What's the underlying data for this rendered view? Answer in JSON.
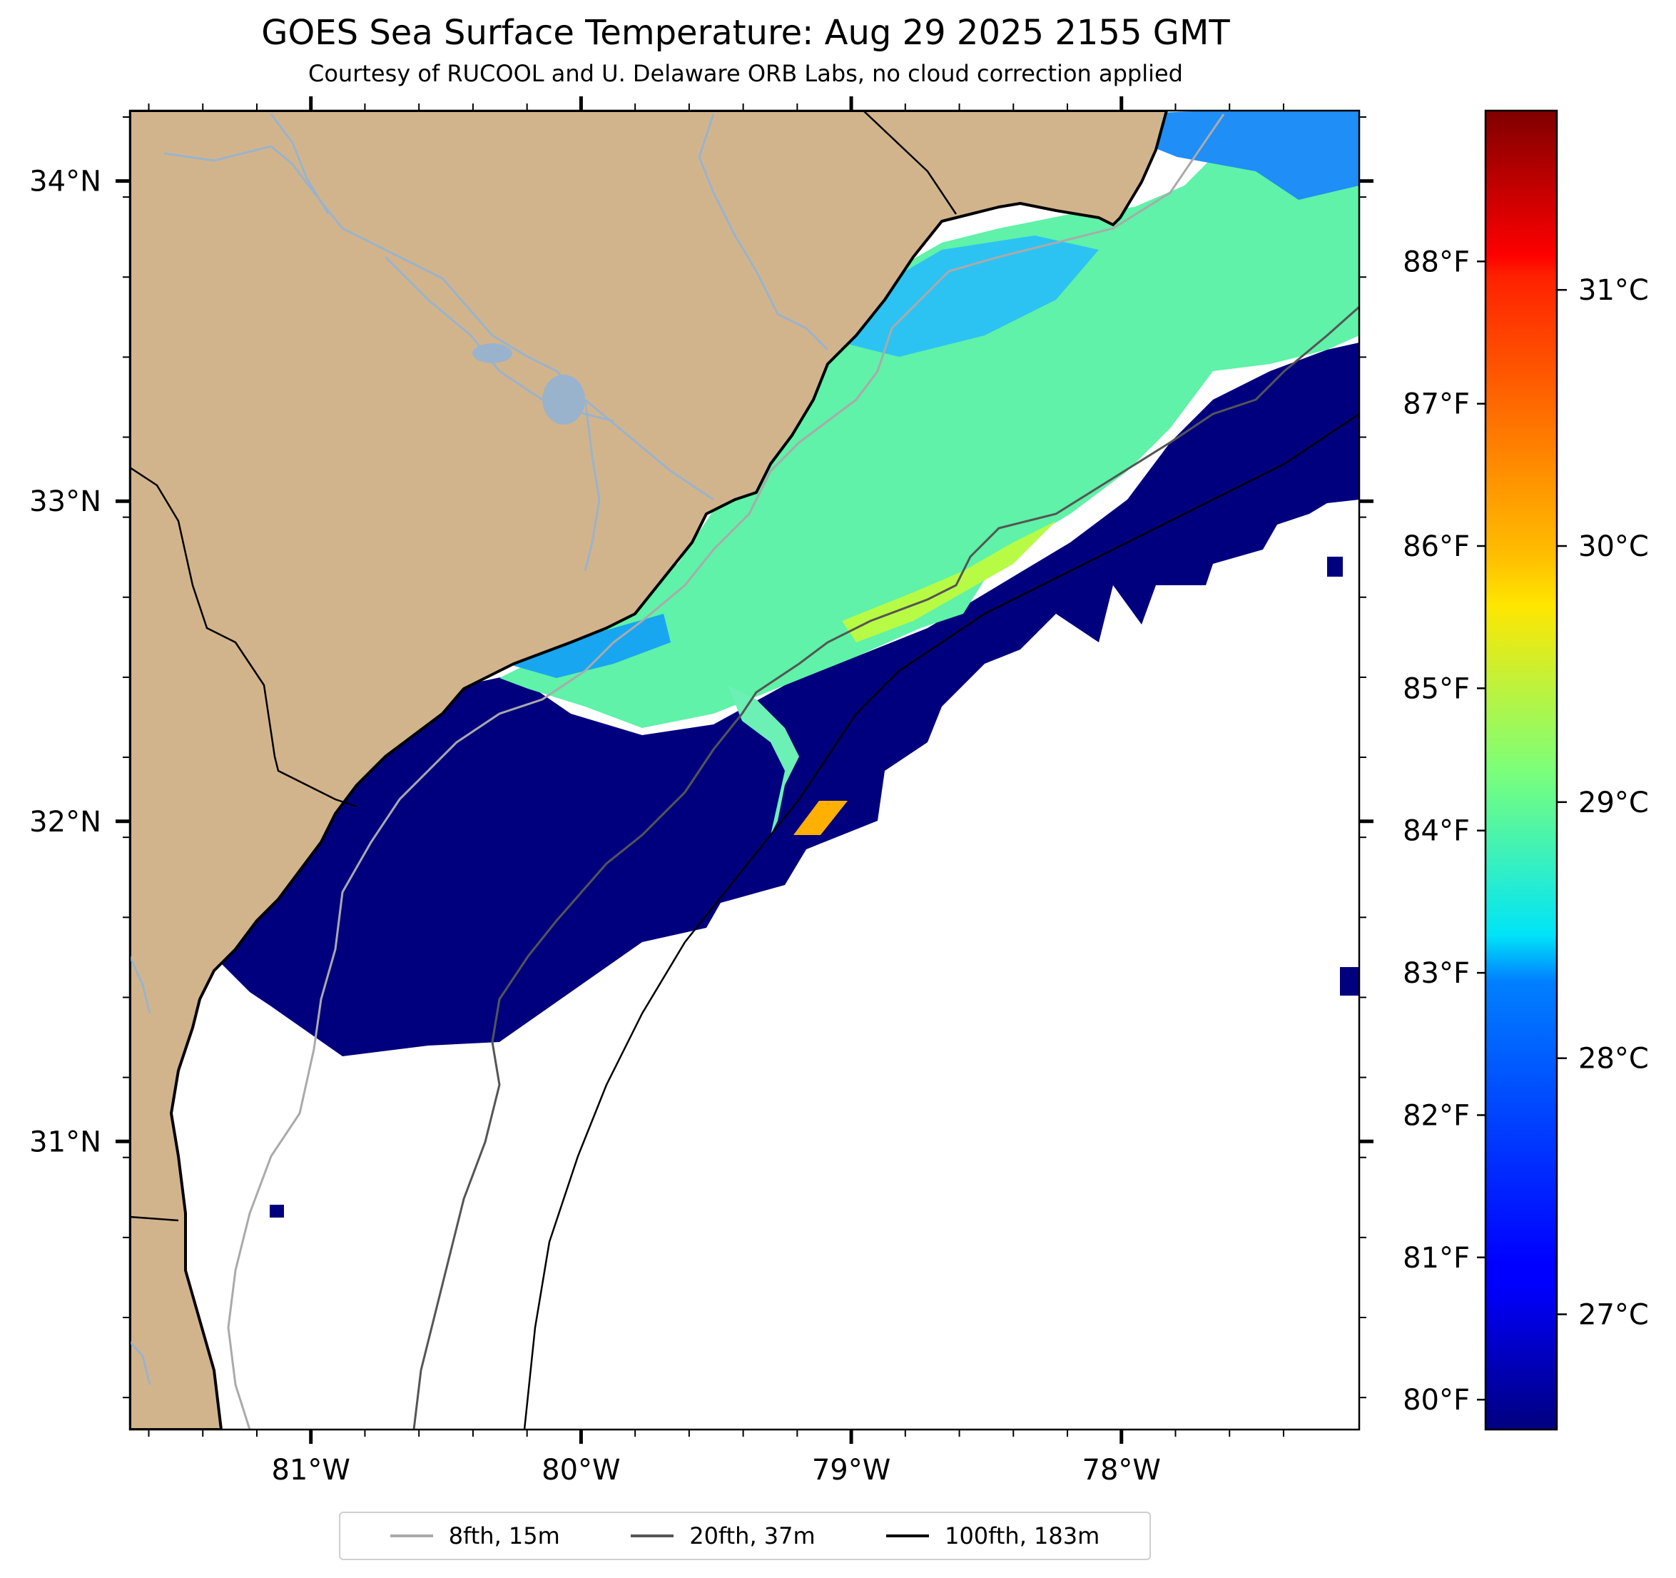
{
  "title": "GOES Sea Surface Temperature: Aug 29 2025 2155 GMT",
  "subtitle": "Courtesy of RUCOOL and U. Delaware ORB Labs, no cloud correction applied",
  "map": {
    "lon_range": [
      -81.67,
      -77.12
    ],
    "lat_range": [
      30.1,
      34.22
    ],
    "lon_ticks": [
      "81°W",
      "80°W",
      "79°W",
      "78°W"
    ],
    "lat_ticks": [
      "34°N",
      "33°N",
      "32°N",
      "31°N"
    ],
    "colors": {
      "land": "#d2b48c",
      "cold_water": "#00007f",
      "rivers": "#9ab3cc",
      "warm_spot": "#ffb000"
    }
  },
  "colorbar": {
    "colormap": "jet",
    "range_c": [
      26.55,
      31.7
    ],
    "fahrenheit_labels": [
      "88°F",
      "87°F",
      "86°F",
      "85°F",
      "84°F",
      "83°F",
      "82°F",
      "81°F",
      "80°F"
    ],
    "celsius_labels": [
      "31°C",
      "30°C",
      "29°C",
      "28°C",
      "27°C"
    ]
  },
  "legend": {
    "items": [
      {
        "label": "8fth, 15m",
        "color": "#aaaaaa"
      },
      {
        "label": "20fth, 37m",
        "color": "#555555"
      },
      {
        "label": "100fth, 183m",
        "color": "#000000"
      }
    ]
  }
}
